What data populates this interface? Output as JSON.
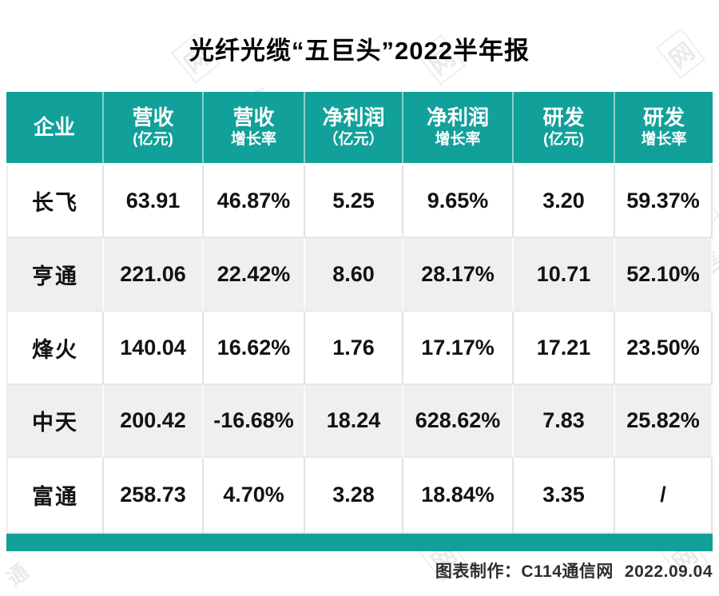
{
  "chart_data": {
    "type": "table",
    "title": "光纤光缆“五巨头”2022半年报",
    "columns": [
      {
        "label": "企业",
        "sub": ""
      },
      {
        "label": "营收",
        "sub": "(亿元)"
      },
      {
        "label": "营收",
        "sub": "增长率"
      },
      {
        "label": "净利润",
        "sub": "（亿元）"
      },
      {
        "label": "净利润",
        "sub": "增长率"
      },
      {
        "label": "研发",
        "sub": "(亿元)"
      },
      {
        "label": "研发",
        "sub": "增长率"
      }
    ],
    "rows": [
      {
        "cells": [
          "长飞",
          "63.91",
          "46.87%",
          "5.25",
          "9.65%",
          "3.20",
          "59.37%"
        ]
      },
      {
        "cells": [
          "亨通",
          "221.06",
          "22.42%",
          "8.60",
          "28.17%",
          "10.71",
          "52.10%"
        ]
      },
      {
        "cells": [
          "烽火",
          "140.04",
          "16.62%",
          "1.76",
          "17.17%",
          "17.21",
          "23.50%"
        ]
      },
      {
        "cells": [
          "中天",
          "200.42",
          "-16.68%",
          "18.24",
          "628.62%",
          "7.83",
          "25.82%"
        ]
      },
      {
        "cells": [
          "富通",
          "258.73",
          "4.70%",
          "3.28",
          "18.84%",
          "3.35",
          "/"
        ]
      }
    ]
  },
  "footer": {
    "credit": "图表制作：",
    "source": "C114通信网",
    "date": "2022.09.04"
  },
  "watermark": {
    "tong": "通",
    "xin": "信",
    "wang": "网",
    "logo_c11": "C11",
    "logo_4": "4"
  },
  "colors": {
    "accent_teal": "#12A09A",
    "row_alt": "#EFEFEF",
    "logo_red": "#E03A3A",
    "text": "#121212"
  }
}
